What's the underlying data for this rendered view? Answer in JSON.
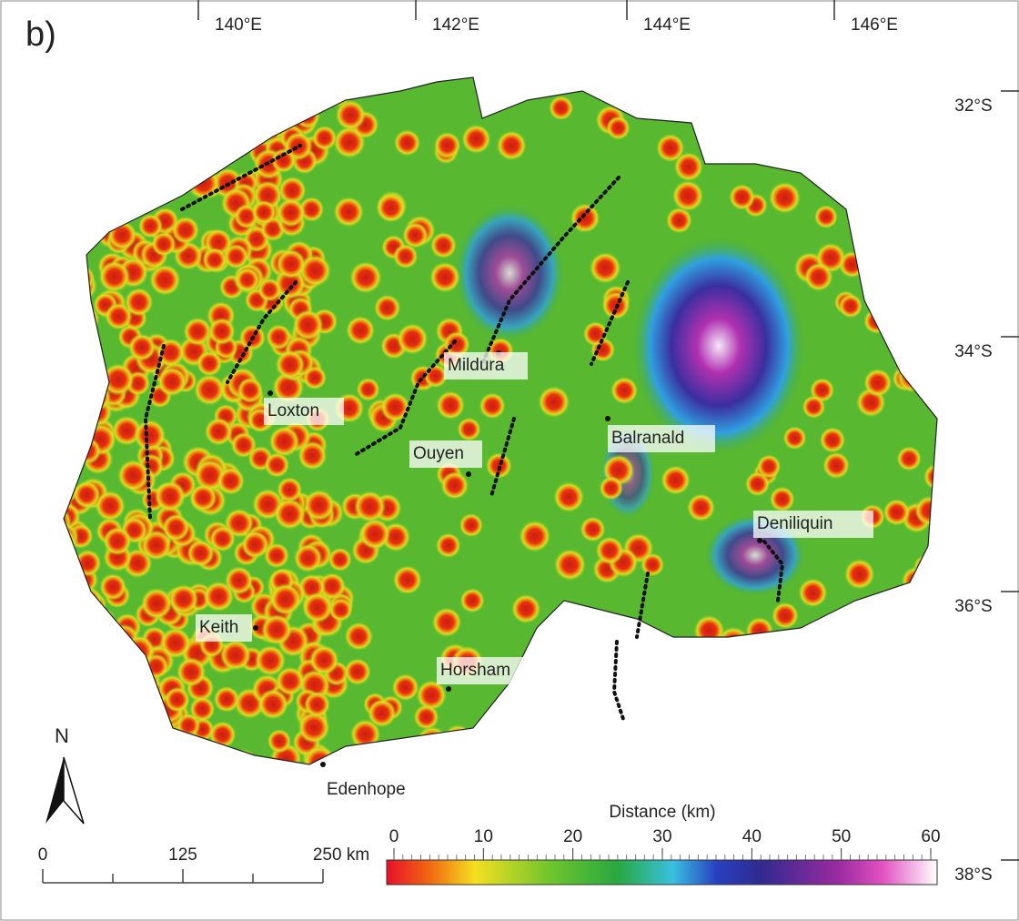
{
  "panel_label": "b)",
  "longitude_labels": [
    "140°E",
    "142°E",
    "144°E",
    "146°E"
  ],
  "latitude_labels": [
    "32°S",
    "34°S",
    "36°S",
    "38°S"
  ],
  "towns": [
    "Mildura",
    "Loxton",
    "Ouyen",
    "Balranald",
    "Deniliquin",
    "Keith",
    "Horsham",
    "Edenhope"
  ],
  "north_label": "N",
  "scale_bar": [
    "0",
    "125",
    "250 km"
  ],
  "colorbar": {
    "title": "Distance (km)",
    "range": [
      0,
      60
    ],
    "ticks": [
      0,
      10,
      20,
      30,
      40,
      50,
      60
    ]
  }
}
